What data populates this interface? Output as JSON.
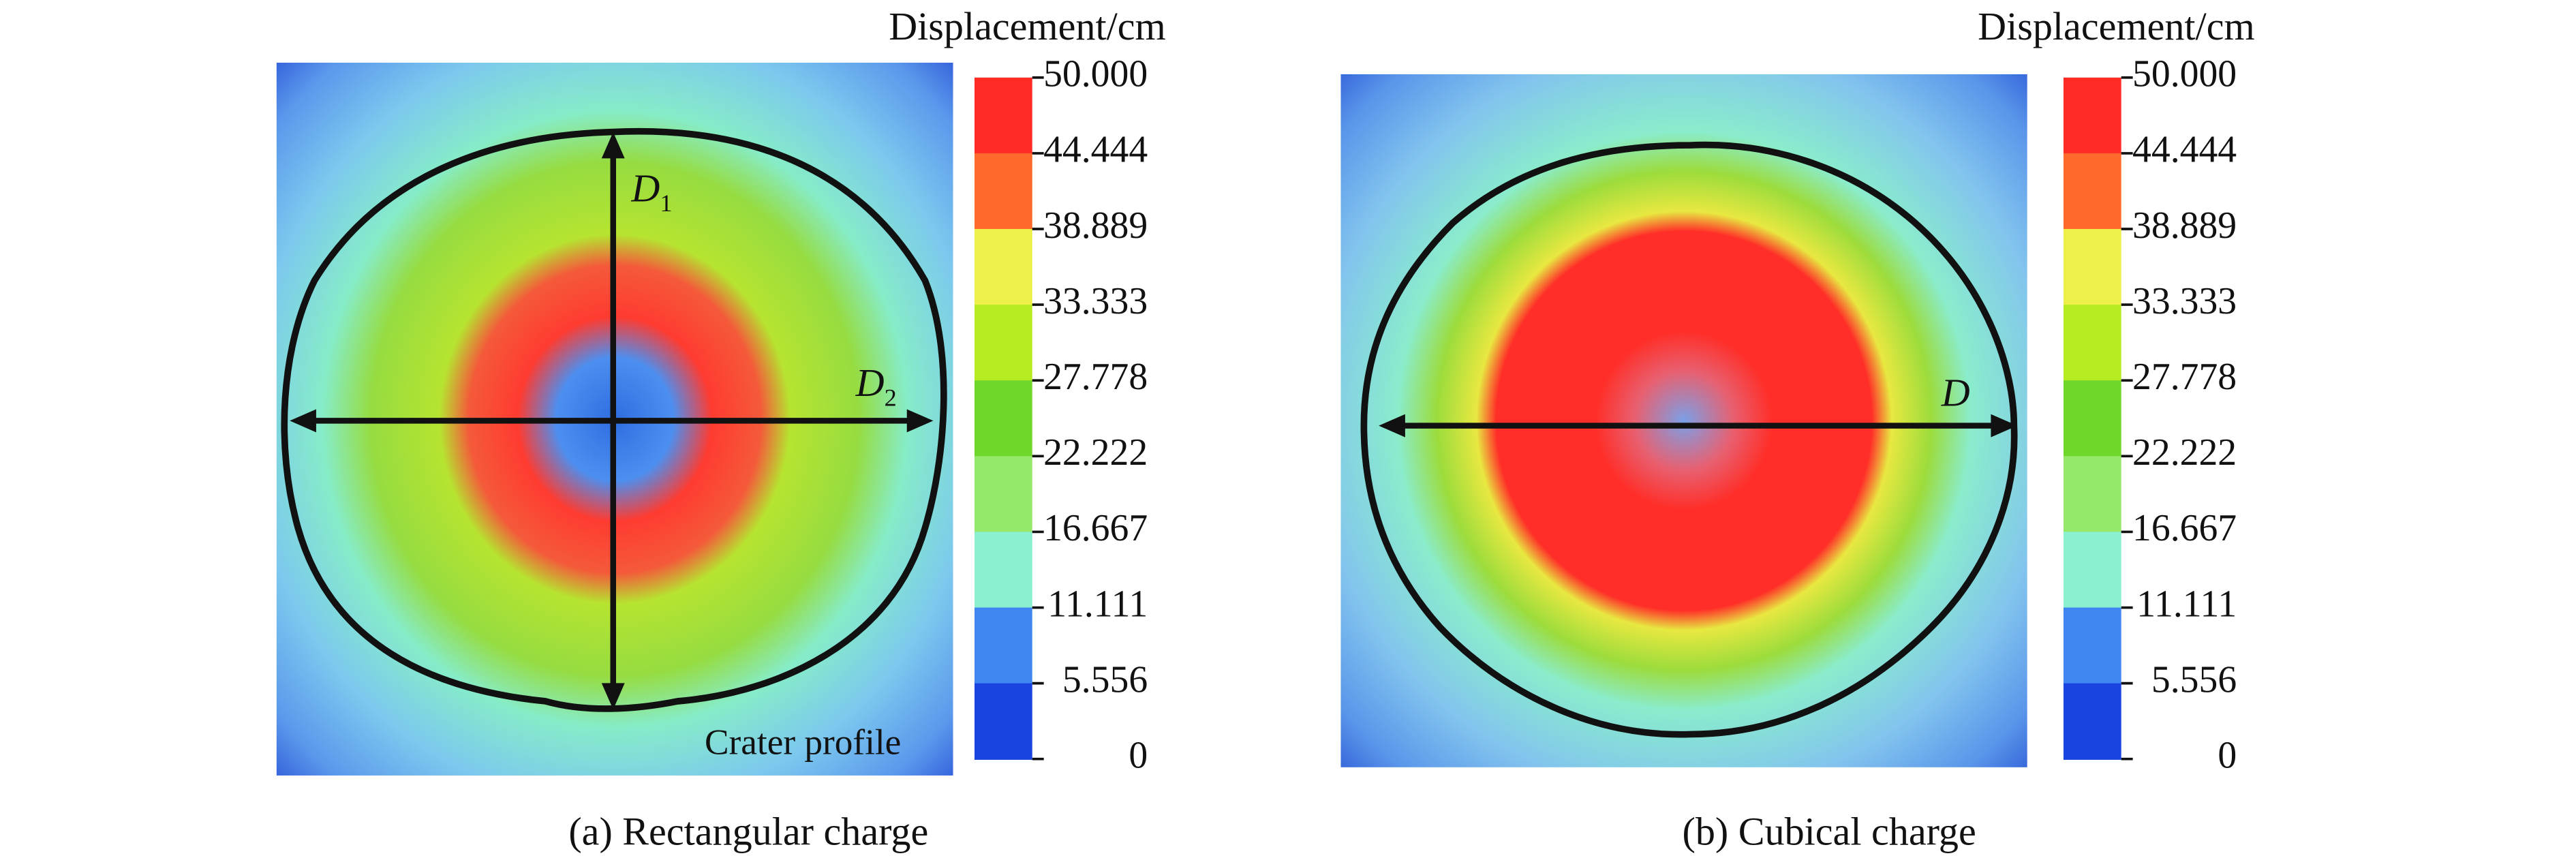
{
  "panels": [
    {
      "caption": "(a) Rectangular charge",
      "colorbar": {
        "title": "Displacement/cm",
        "labels": [
          "50.000",
          "44.444",
          "38.889",
          "33.333",
          "27.778",
          "22.222",
          "16.667",
          "11.111",
          "5.556",
          "0"
        ],
        "colors": [
          "#ff2a24",
          "#ff6a2c",
          "#eef04a",
          "#b8ec22",
          "#6fd62a",
          "#96e86a",
          "#8af0d0",
          "#3f86f0",
          "#1a44e0"
        ]
      },
      "annotations": [
        {
          "text": "D",
          "sub": "1"
        },
        {
          "text": "D",
          "sub": "2"
        }
      ],
      "profile_label": "Crater profile"
    },
    {
      "caption": "(b) Cubical charge",
      "colorbar": {
        "title": "Displacement/cm",
        "labels": [
          "50.000",
          "44.444",
          "38.889",
          "33.333",
          "27.778",
          "22.222",
          "16.667",
          "11.111",
          "5.556",
          "0"
        ],
        "colors": [
          "#ff2a24",
          "#ff6a2c",
          "#eef04a",
          "#b8ec22",
          "#6fd62a",
          "#96e86a",
          "#8af0d0",
          "#3f86f0",
          "#1a44e0"
        ]
      },
      "annotations": [
        {
          "text": "D"
        }
      ]
    }
  ]
}
